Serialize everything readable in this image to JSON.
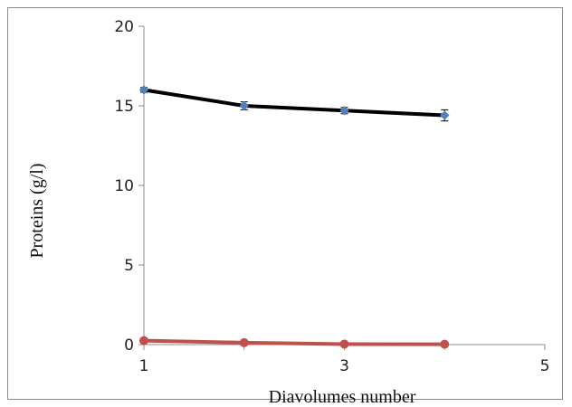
{
  "chart_data": {
    "type": "line",
    "title": "",
    "xlabel": "Diavolumes number",
    "ylabel": "Proteins (g/l)",
    "xlim": [
      1,
      5
    ],
    "ylim": [
      0,
      20
    ],
    "x_ticks": [
      "1",
      "3",
      "5"
    ],
    "y_ticks": [
      "0",
      "5",
      "10",
      "15",
      "20"
    ],
    "grid": false,
    "legend": "none",
    "series": [
      {
        "color": "#000000",
        "marker_color": "#4f81bd",
        "marker": "diamond",
        "x": [
          1,
          2,
          3,
          4
        ],
        "y": [
          16.0,
          15.0,
          14.7,
          14.4
        ],
        "error": [
          0.15,
          0.25,
          0.2,
          0.35
        ]
      },
      {
        "color": "#c0504d",
        "marker_color": "#c0504d",
        "marker": "circle",
        "x": [
          1,
          2,
          3,
          4
        ],
        "y": [
          0.25,
          0.12,
          0.03,
          0.02
        ]
      }
    ]
  }
}
